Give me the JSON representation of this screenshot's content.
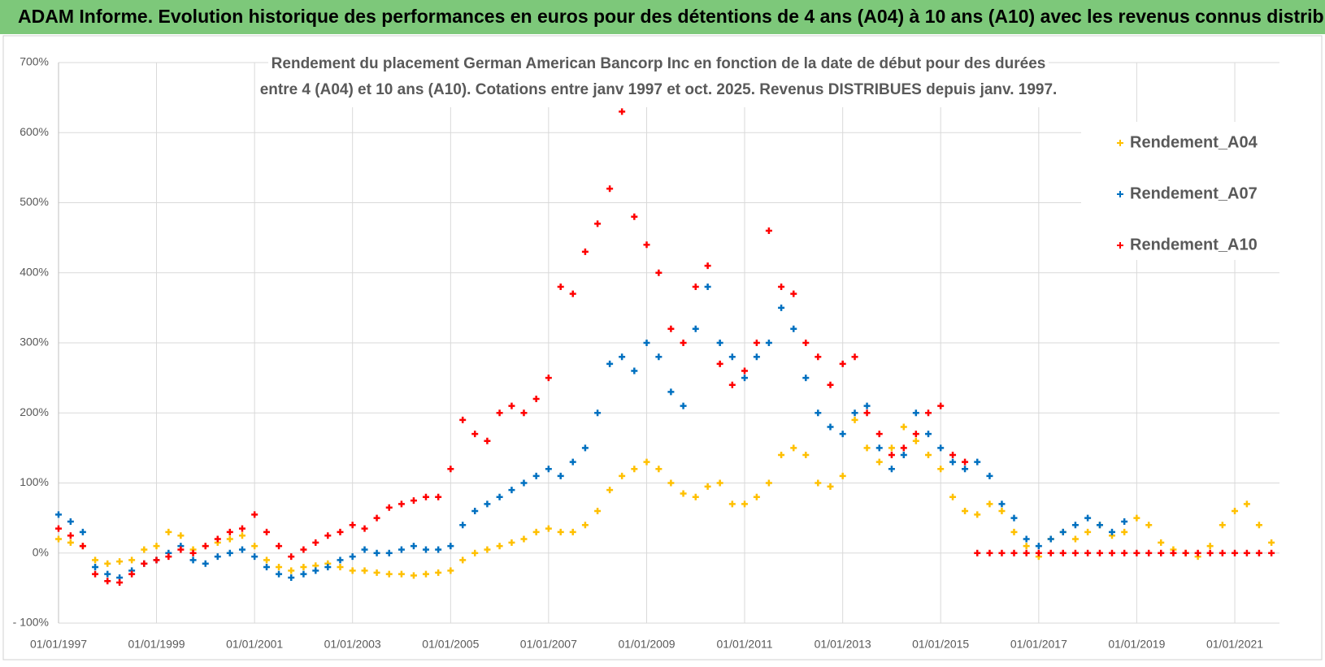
{
  "header": "ADAM Informe. Evolution historique des performances en euros pour des détentions de 4 ans (A04) à 10 ans (A10) avec les revenus connus distribués",
  "chart_data": {
    "type": "scatter",
    "title": [
      "Rendement du placement German American Bancorp Inc en fonction de la date de début pour des durées",
      "entre 4 (A04) et 10 ans (A10). Cotations entre janv 1997 et oct. 2025. Revenus DISTRIBUES depuis janv. 1997."
    ],
    "x": [
      "1997-01-01",
      "1997-04-01",
      "1997-07-01",
      "1997-10-01",
      "1998-01-01",
      "1998-04-01",
      "1998-07-01",
      "1998-10-01",
      "1999-01-01",
      "1999-04-01",
      "1999-07-01",
      "1999-10-01",
      "2000-01-01",
      "2000-04-01",
      "2000-07-01",
      "2000-10-01",
      "2001-01-01",
      "2001-04-01",
      "2001-07-01",
      "2001-10-01",
      "2002-01-01",
      "2002-04-01",
      "2002-07-01",
      "2002-10-01",
      "2003-01-01",
      "2003-04-01",
      "2003-07-01",
      "2003-10-01",
      "2004-01-01",
      "2004-04-01",
      "2004-07-01",
      "2004-10-01",
      "2005-01-01",
      "2005-04-01",
      "2005-07-01",
      "2005-10-01",
      "2006-01-01",
      "2006-04-01",
      "2006-07-01",
      "2006-10-01",
      "2007-01-01",
      "2007-04-01",
      "2007-07-01",
      "2007-10-01",
      "2008-01-01",
      "2008-04-01",
      "2008-07-01",
      "2008-10-01",
      "2009-01-01",
      "2009-04-01",
      "2009-07-01",
      "2009-10-01",
      "2010-01-01",
      "2010-04-01",
      "2010-07-01",
      "2010-10-01",
      "2011-01-01",
      "2011-04-01",
      "2011-07-01",
      "2011-10-01",
      "2012-01-01",
      "2012-04-01",
      "2012-07-01",
      "2012-10-01",
      "2013-01-01",
      "2013-04-01",
      "2013-07-01",
      "2013-10-01",
      "2014-01-01",
      "2014-04-01",
      "2014-07-01",
      "2014-10-01",
      "2015-01-01",
      "2015-04-01",
      "2015-07-01",
      "2015-10-01",
      "2016-01-01",
      "2016-04-01",
      "2016-07-01",
      "2016-10-01",
      "2017-01-01",
      "2017-04-01",
      "2017-07-01",
      "2017-10-01",
      "2018-01-01",
      "2018-04-01",
      "2018-07-01",
      "2018-10-01",
      "2019-01-01",
      "2019-04-01",
      "2019-07-01",
      "2019-10-01",
      "2020-01-01",
      "2020-04-01",
      "2020-07-01",
      "2020-10-01",
      "2021-01-01",
      "2021-04-01",
      "2021-07-01",
      "2021-10-01"
    ],
    "series": [
      {
        "name": "Rendement_A04",
        "color": "#ffc000",
        "values": [
          20,
          15,
          10,
          -10,
          -15,
          -12,
          -10,
          5,
          10,
          30,
          25,
          5,
          10,
          15,
          20,
          25,
          10,
          -10,
          -20,
          -25,
          -20,
          -18,
          -15,
          -20,
          -25,
          -25,
          -28,
          -30,
          -30,
          -32,
          -30,
          -28,
          -25,
          -10,
          0,
          5,
          10,
          15,
          20,
          30,
          35,
          30,
          30,
          40,
          60,
          90,
          110,
          120,
          130,
          120,
          100,
          85,
          80,
          95,
          100,
          70,
          70,
          80,
          100,
          140,
          150,
          140,
          100,
          95,
          110,
          190,
          150,
          130,
          150,
          180,
          160,
          140,
          120,
          80,
          60,
          55,
          70,
          60,
          30,
          10,
          -5,
          20,
          30,
          20,
          30,
          40,
          25,
          30,
          50,
          40,
          15,
          5,
          0,
          -5,
          10,
          40,
          60,
          70,
          40,
          15
        ]
      },
      {
        "name": "Rendement_A07",
        "color": "#0070c0",
        "values": [
          55,
          45,
          30,
          -20,
          -30,
          -35,
          -25,
          -15,
          -10,
          0,
          10,
          -10,
          -15,
          -5,
          0,
          5,
          -5,
          -20,
          -30,
          -35,
          -30,
          -25,
          -20,
          -10,
          -5,
          5,
          0,
          0,
          5,
          10,
          5,
          5,
          10,
          40,
          60,
          70,
          80,
          90,
          100,
          110,
          120,
          110,
          130,
          150,
          200,
          270,
          280,
          260,
          300,
          280,
          230,
          210,
          320,
          380,
          300,
          280,
          250,
          280,
          300,
          350,
          320,
          250,
          200,
          180,
          170,
          200,
          210,
          150,
          120,
          140,
          200,
          170,
          150,
          130,
          120,
          130,
          110,
          70,
          50,
          20,
          10,
          20,
          30,
          40,
          50,
          40,
          30,
          45,
          null,
          null,
          null,
          null,
          null,
          null,
          null,
          null,
          null,
          null,
          null,
          null
        ]
      },
      {
        "name": "Rendement_A10",
        "color": "#ff0000",
        "values": [
          35,
          25,
          10,
          -30,
          -40,
          -42,
          -30,
          -15,
          -10,
          -5,
          5,
          0,
          10,
          20,
          30,
          35,
          55,
          30,
          10,
          -5,
          5,
          15,
          25,
          30,
          40,
          35,
          50,
          65,
          70,
          75,
          80,
          80,
          120,
          190,
          170,
          160,
          200,
          210,
          200,
          220,
          250,
          380,
          370,
          430,
          470,
          520,
          630,
          480,
          440,
          400,
          320,
          300,
          380,
          410,
          270,
          240,
          260,
          300,
          460,
          380,
          370,
          300,
          280,
          240,
          270,
          280,
          200,
          170,
          140,
          150,
          170,
          200,
          210,
          140,
          130,
          0,
          0,
          0,
          0,
          0,
          0,
          0,
          0,
          0,
          0,
          0,
          0,
          0,
          0,
          0,
          0,
          0,
          0,
          0,
          0,
          0,
          0,
          0,
          0,
          0
        ]
      }
    ],
    "xlim": [
      "1997-01-01",
      "2021-11-30"
    ],
    "xticks": [
      {
        "value": "1997-01-01",
        "label": "01/01/1997"
      },
      {
        "value": "1999-01-01",
        "label": "01/01/1999"
      },
      {
        "value": "2001-01-01",
        "label": "01/01/2001"
      },
      {
        "value": "2003-01-01",
        "label": "01/01/2003"
      },
      {
        "value": "2005-01-01",
        "label": "01/01/2005"
      },
      {
        "value": "2007-01-01",
        "label": "01/01/2007"
      },
      {
        "value": "2009-01-01",
        "label": "01/01/2009"
      },
      {
        "value": "2011-01-01",
        "label": "01/01/2011"
      },
      {
        "value": "2013-01-01",
        "label": "01/01/2013"
      },
      {
        "value": "2015-01-01",
        "label": "01/01/2015"
      },
      {
        "value": "2017-01-01",
        "label": "01/01/2017"
      },
      {
        "value": "2019-01-01",
        "label": "01/01/2019"
      },
      {
        "value": "2021-01-01",
        "label": "01/01/2021"
      }
    ],
    "ylim": [
      -100,
      700
    ],
    "yticks": [
      {
        "value": -100,
        "label": "- 100%"
      },
      {
        "value": 0,
        "label": "0%"
      },
      {
        "value": 100,
        "label": "100%"
      },
      {
        "value": 200,
        "label": "200%"
      },
      {
        "value": 300,
        "label": "300%"
      },
      {
        "value": 400,
        "label": "400%"
      },
      {
        "value": 500,
        "label": "500%"
      },
      {
        "value": 600,
        "label": "600%"
      },
      {
        "value": 700,
        "label": "700%"
      }
    ],
    "grid": true,
    "legend": "top-right"
  }
}
